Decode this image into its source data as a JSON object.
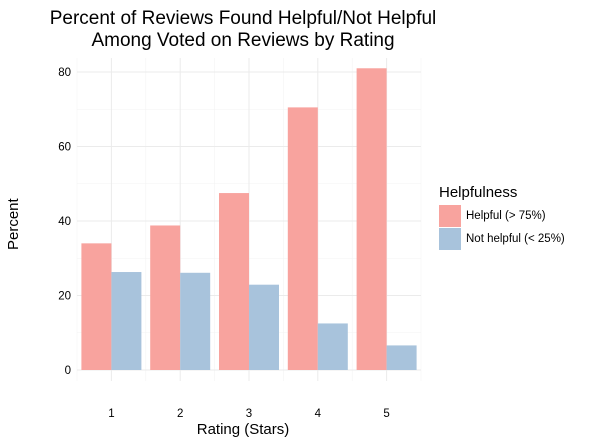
{
  "chart_data": {
    "type": "bar",
    "title_lines": [
      "Percent of Reviews Found Helpful/Not Helpful",
      "Among Voted on Reviews by Rating"
    ],
    "xlabel": "Rating (Stars)",
    "ylabel": "Percent",
    "categories": [
      "1",
      "2",
      "3",
      "4",
      "5"
    ],
    "ylim": [
      0,
      82
    ],
    "yticks": [
      0,
      20,
      40,
      60,
      80
    ],
    "grid": true,
    "legend": {
      "title": "Helpfulness",
      "position": "right"
    },
    "series": [
      {
        "name": "Helpful (> 75%)",
        "color": "#f8a39e",
        "values": [
          34,
          38.8,
          47.5,
          70.5,
          81
        ]
      },
      {
        "name": "Not helpful (< 25%)",
        "color": "#a8c3dc",
        "values": [
          26.3,
          26.1,
          22.9,
          12.5,
          6.6
        ]
      }
    ]
  }
}
